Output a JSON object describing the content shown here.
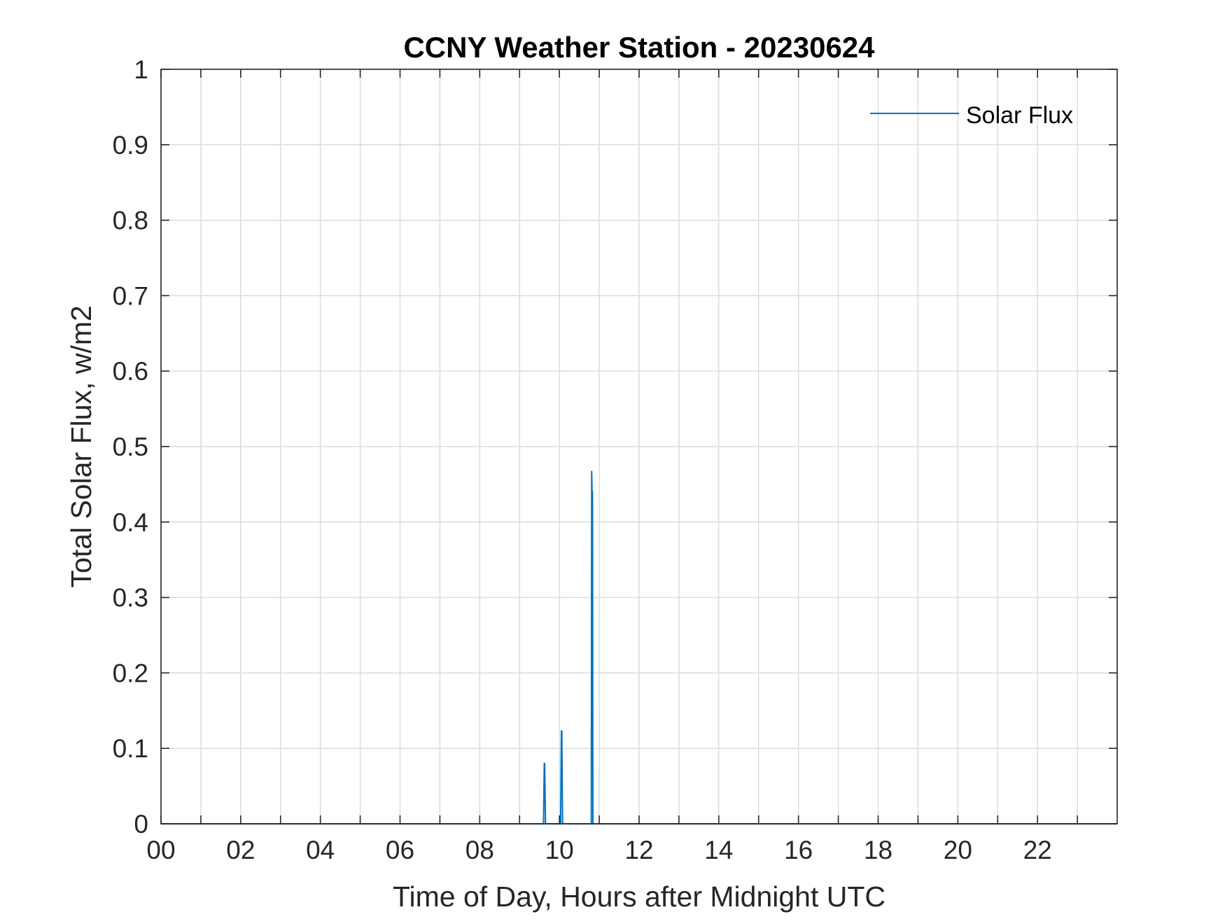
{
  "chart_data": {
    "type": "line",
    "title": "CCNY Weather Station - 20230624",
    "xlabel": "Time of Day, Hours after Midnight UTC",
    "ylabel": "Total Solar Flux, w/m2",
    "xlim": [
      0,
      24
    ],
    "ylim": [
      0,
      1
    ],
    "x_major_ticks": [
      0,
      2,
      4,
      6,
      8,
      10,
      12,
      14,
      16,
      18,
      20,
      22
    ],
    "x_tick_labels": [
      "00",
      "02",
      "04",
      "06",
      "08",
      "10",
      "12",
      "14",
      "16",
      "18",
      "20",
      "22"
    ],
    "x_minor_ticks": [
      1,
      3,
      5,
      7,
      9,
      11,
      13,
      15,
      17,
      19,
      21,
      23
    ],
    "y_ticks": [
      0,
      0.1,
      0.2,
      0.3,
      0.4,
      0.5,
      0.6,
      0.7,
      0.8,
      0.9,
      1
    ],
    "y_tick_labels": [
      "0",
      "0.1",
      "0.2",
      "0.3",
      "0.4",
      "0.5",
      "0.6",
      "0.7",
      "0.8",
      "0.9",
      "1"
    ],
    "grid": true,
    "legend_position": "top-right",
    "series": [
      {
        "name": "Solar Flux",
        "color": "#0072BD",
        "x": [
          0,
          9.6,
          9.62,
          9.63,
          9.65,
          10.03,
          10.05,
          10.06,
          10.08,
          10.8,
          10.81,
          10.82,
          10.83,
          10.84,
          24
        ],
        "y": [
          0,
          0,
          0.08,
          0.08,
          0,
          0,
          0.123,
          0.123,
          0,
          0,
          0.467,
          0.44,
          0.44,
          0,
          0
        ]
      }
    ]
  }
}
